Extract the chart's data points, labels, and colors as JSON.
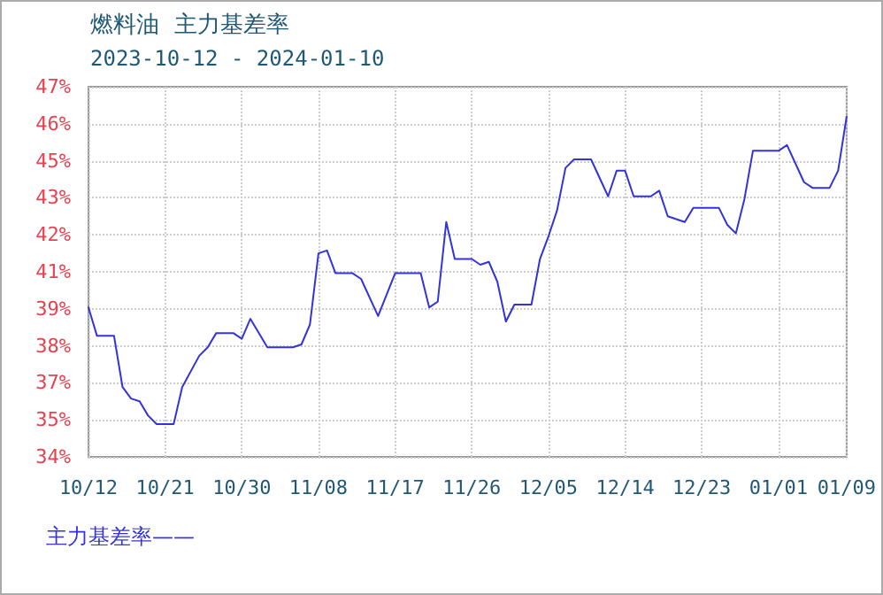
{
  "chart_data": {
    "type": "line",
    "title": "燃料油  主力基差率",
    "subtitle": "2023-10-12 - 2024-01-10",
    "xlim": [
      "2023-10-12",
      "2024-01-09"
    ],
    "xticks": [
      {
        "value": "2023-10-12",
        "label": "10/12"
      },
      {
        "value": "2023-10-21",
        "label": "10/21"
      },
      {
        "value": "2023-10-30",
        "label": "10/30"
      },
      {
        "value": "2023-11-08",
        "label": "11/08"
      },
      {
        "value": "2023-11-17",
        "label": "11/17"
      },
      {
        "value": "2023-11-26",
        "label": "11/26"
      },
      {
        "value": "2023-12-05",
        "label": "12/05"
      },
      {
        "value": "2023-12-14",
        "label": "12/14"
      },
      {
        "value": "2023-12-23",
        "label": "12/23"
      },
      {
        "value": "2024-01-01",
        "label": "01/01"
      },
      {
        "value": "2024-01-09",
        "label": "01/09"
      }
    ],
    "ylim": [
      34.15,
      47.15
    ],
    "yticks": [
      {
        "value": 34.15,
        "label": "34%"
      },
      {
        "value": 35.45,
        "label": "35%"
      },
      {
        "value": 36.75,
        "label": "37%"
      },
      {
        "value": 38.05,
        "label": "38%"
      },
      {
        "value": 39.35,
        "label": "39%"
      },
      {
        "value": 40.65,
        "label": "41%"
      },
      {
        "value": 41.95,
        "label": "42%"
      },
      {
        "value": 43.25,
        "label": "43%"
      },
      {
        "value": 44.55,
        "label": "45%"
      },
      {
        "value": 45.85,
        "label": "46%"
      },
      {
        "value": 47.15,
        "label": "47%"
      }
    ],
    "series": [
      {
        "name": "主力基差率——",
        "color": "#3333dd",
        "x": [
          "2023-10-12",
          "2023-10-13",
          "2023-10-15",
          "2023-10-16",
          "2023-10-17",
          "2023-10-18",
          "2023-10-19",
          "2023-10-20",
          "2023-10-22",
          "2023-10-23",
          "2023-10-25",
          "2023-10-26",
          "2023-10-27",
          "2023-10-29",
          "2023-10-30",
          "2023-10-31",
          "2023-11-02",
          "2023-11-05",
          "2023-11-06",
          "2023-11-07",
          "2023-11-08",
          "2023-11-09",
          "2023-11-10",
          "2023-11-12",
          "2023-11-13",
          "2023-11-15",
          "2023-11-17",
          "2023-11-20",
          "2023-11-21",
          "2023-11-22",
          "2023-11-23",
          "2023-11-24",
          "2023-11-26",
          "2023-11-27",
          "2023-11-28",
          "2023-11-29",
          "2023-11-30",
          "2023-12-01",
          "2023-12-03",
          "2023-12-04",
          "2023-12-05",
          "2023-12-06",
          "2023-12-07",
          "2023-12-08",
          "2023-12-10",
          "2023-12-12",
          "2023-12-13",
          "2023-12-14",
          "2023-12-15",
          "2023-12-17",
          "2023-12-18",
          "2023-12-19",
          "2023-12-20",
          "2023-12-21",
          "2023-12-22",
          "2023-12-25",
          "2023-12-26",
          "2023-12-27",
          "2023-12-28",
          "2023-12-29",
          "2024-01-01",
          "2024-01-02",
          "2024-01-04",
          "2024-01-05",
          "2024-01-07",
          "2024-01-08",
          "2024-01-09"
        ],
        "values": [
          39.4,
          38.4,
          38.4,
          36.6,
          36.2,
          36.1,
          35.6,
          35.3,
          35.3,
          36.6,
          37.7,
          38.0,
          38.5,
          38.5,
          38.3,
          39.0,
          38.0,
          38.0,
          38.1,
          38.8,
          41.3,
          41.4,
          40.6,
          40.6,
          40.4,
          39.1,
          40.6,
          40.6,
          39.4,
          39.6,
          42.4,
          41.1,
          41.1,
          40.9,
          41.0,
          40.3,
          38.9,
          39.5,
          39.5,
          41.1,
          41.9,
          42.8,
          44.3,
          44.6,
          44.6,
          43.3,
          44.2,
          44.2,
          43.3,
          43.3,
          43.5,
          42.6,
          42.5,
          42.4,
          42.9,
          42.9,
          42.3,
          42.0,
          43.2,
          44.9,
          44.9,
          45.1,
          43.8,
          43.6,
          43.6,
          44.2,
          46.1
        ]
      }
    ],
    "grid": true,
    "legend": "bottom left",
    "marker": "none",
    "line_style": "solid"
  }
}
